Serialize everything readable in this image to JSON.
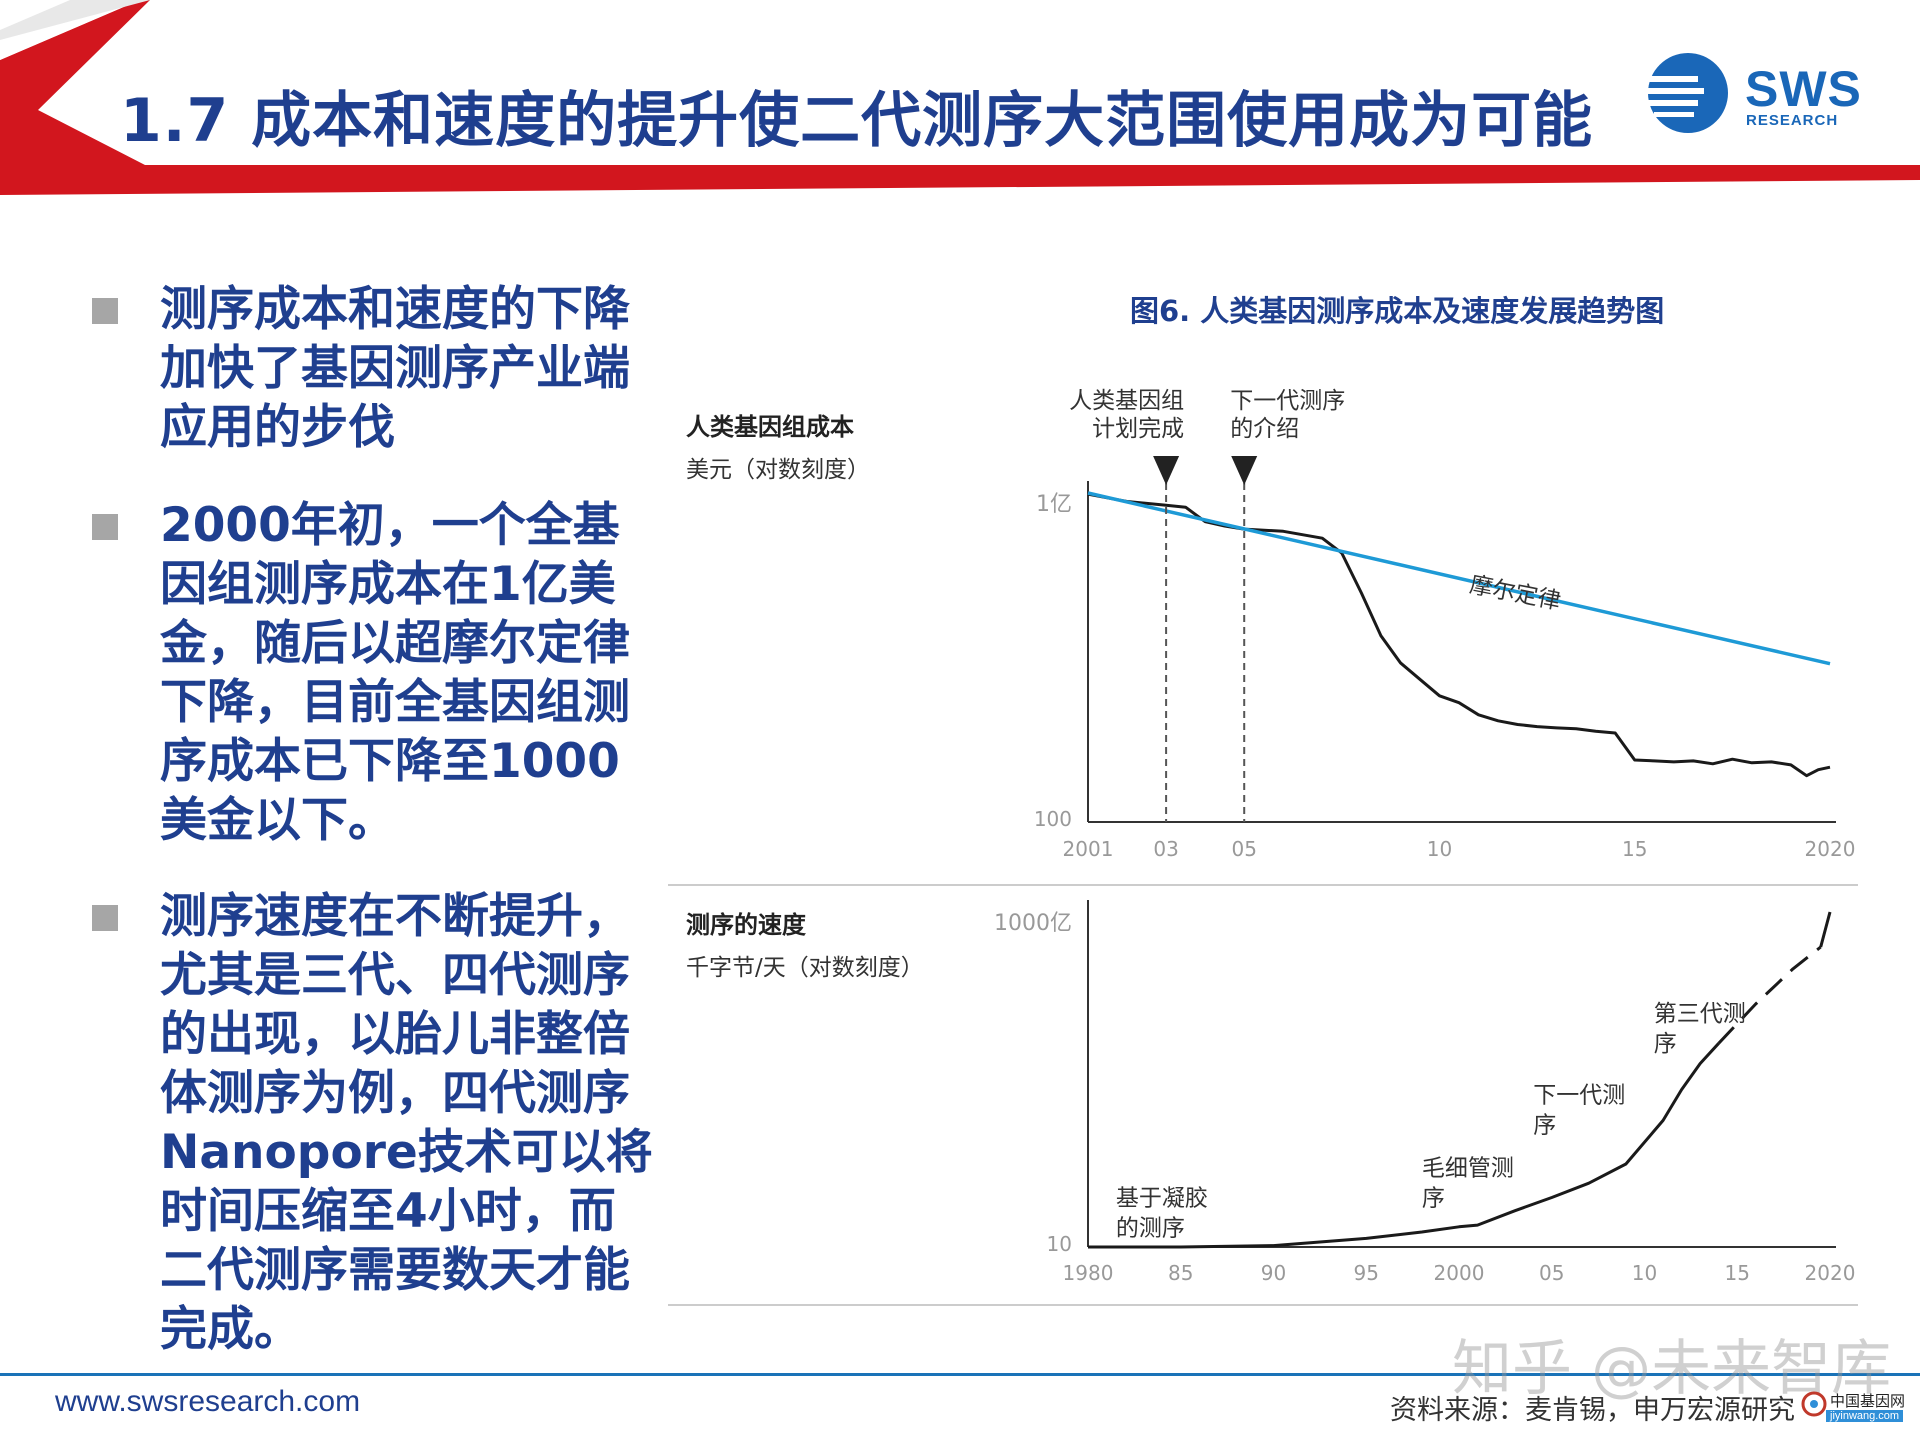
{
  "header": {
    "title": "1.7 成本和速度的提升使二代测序大范围使用成为可能",
    "logo": {
      "name": "SWS",
      "sub": "RESEARCH"
    },
    "colors": {
      "accent_red": "#d2161e",
      "title_blue": "#1f3f8f",
      "logo_blue": "#1a67b8"
    }
  },
  "bullets": [
    "测序成本和速度的下降加快了基因测序产业端应用的步伐",
    "2000年初，一个全基因组测序成本在1亿美金，随后以超摩尔定律下降，目前全基因组测序成本已下降至1000美金以下。",
    "测序速度在不断提升，尤其是三代、四代测序的出现，以胎儿非整倍体测序为例，四代测序Nanopore技术可以将时间压缩至4小时，而二代测序需要数天才能完成。"
  ],
  "figure_title": "图6. 人类基因测序成本及速度发展趋势图",
  "chart_data": [
    {
      "type": "line",
      "title": "人类基因组成本",
      "ylabel": "美元（对数刻度）",
      "y_scale": "log",
      "ylim": [
        100,
        100000000
      ],
      "y_ticks": [
        "1亿",
        "100"
      ],
      "xlim": [
        2001,
        2020
      ],
      "x_ticks": [
        {
          "x": 2001,
          "label": "2001"
        },
        {
          "x": 2003,
          "label": "03"
        },
        {
          "x": 2005,
          "label": "05"
        },
        {
          "x": 2010,
          "label": "10"
        },
        {
          "x": 2015,
          "label": "15"
        },
        {
          "x": 2020,
          "label": "2020"
        }
      ],
      "series": [
        {
          "name": "",
          "color": "#1a1a1a",
          "points": [
            [
              2001,
              95000000
            ],
            [
              2002,
              70000000
            ],
            [
              2003,
              60000000
            ],
            [
              2003.5,
              55000000
            ],
            [
              2004,
              30000000
            ],
            [
              2004.5,
              25000000
            ],
            [
              2005,
              22000000
            ],
            [
              2006,
              20000000
            ],
            [
              2007,
              15000000
            ],
            [
              2007.5,
              8000000
            ],
            [
              2008,
              1500000
            ],
            [
              2008.5,
              250000
            ],
            [
              2009,
              80000.0
            ],
            [
              2009.5,
              40000
            ],
            [
              2010,
              20000
            ],
            [
              2010.5,
              15000
            ],
            [
              2011,
              9000
            ],
            [
              2011.5,
              7000
            ],
            [
              2012,
              6000
            ],
            [
              2012.5,
              5500
            ],
            [
              2013,
              5200
            ],
            [
              2013.5,
              5000
            ],
            [
              2014,
              4500
            ],
            [
              2014.5,
              4200
            ],
            [
              2015,
              1350
            ],
            [
              2015.5,
              1300
            ],
            [
              2016,
              1250
            ],
            [
              2016.5,
              1300
            ],
            [
              2017,
              1150
            ],
            [
              2017.5,
              1400
            ],
            [
              2018,
              1200
            ],
            [
              2018.5,
              1250
            ],
            [
              2019,
              1100
            ],
            [
              2019.4,
              700
            ],
            [
              2019.7,
              900
            ],
            [
              2020,
              1000
            ]
          ]
        },
        {
          "name": "摩尔定律",
          "color": "#1e9ad6",
          "points": [
            [
              2001,
              100000000
            ],
            [
              2020,
              77000
            ]
          ]
        }
      ],
      "annotations": [
        {
          "x": 2003,
          "label": "人类基因组计划完成"
        },
        {
          "x": 2005,
          "label": "下一代测序的介绍"
        }
      ]
    },
    {
      "type": "line",
      "title": "测序的速度",
      "ylabel": "千字节/天（对数刻度）",
      "y_scale": "log",
      "ylim": [
        10,
        100000000000
      ],
      "y_ticks": [
        "1000亿",
        "10"
      ],
      "xlim": [
        1980,
        2020
      ],
      "x_ticks": [
        {
          "x": 1980,
          "label": "1980"
        },
        {
          "x": 1985,
          "label": "85"
        },
        {
          "x": 1990,
          "label": "90"
        },
        {
          "x": 1995,
          "label": "95"
        },
        {
          "x": 2000,
          "label": "2000"
        },
        {
          "x": 2005,
          "label": "05"
        },
        {
          "x": 2010,
          "label": "10"
        },
        {
          "x": 2015,
          "label": "15"
        },
        {
          "x": 2020,
          "label": "2020"
        }
      ],
      "series": [
        {
          "name": "",
          "color": "#1a1a1a",
          "points": [
            [
              1980,
              10
            ],
            [
              1985,
              10
            ],
            [
              1990,
              11
            ],
            [
              1995,
              18
            ],
            [
              1998,
              28
            ],
            [
              2000,
              40
            ],
            [
              2001,
              45
            ],
            [
              2003,
              120
            ],
            [
              2005,
              300
            ],
            [
              2007,
              800
            ],
            [
              2009,
              3000
            ],
            [
              2011,
              60000
            ],
            [
              2012,
              500000
            ],
            [
              2013,
              3000000
            ],
            [
              2014,
              12000000
            ]
          ]
        },
        {
          "name": "",
          "color": "#1a1a1a",
          "style": "dashed",
          "points": [
            [
              2014,
              12000000
            ],
            [
              2016,
              180000000
            ],
            [
              2018,
              2000000000
            ],
            [
              2019.5,
              9000000000
            ]
          ]
        },
        {
          "name": "",
          "color": "#1a1a1a",
          "points": [
            [
              2019.5,
              9000000000
            ],
            [
              2020,
              100000000000
            ]
          ]
        }
      ],
      "annotations": [
        {
          "x": 1981.5,
          "y": 25,
          "label": "基于凝胶的测序"
        },
        {
          "x": 1998,
          "y": 200,
          "label": "毛细管测序"
        },
        {
          "x": 2004,
          "y": 30000,
          "label": "下一代测序"
        },
        {
          "x": 2010.5,
          "y": 8000000,
          "label": "第三代测序"
        }
      ]
    }
  ],
  "footer": {
    "url": "www.swsresearch.com",
    "source": "资料来源：麦肯锡，申万宏源研究",
    "watermark": "知乎 @未来智库",
    "corner_logo": "中国基因网",
    "corner_logo_sub": "jiyinwang.com"
  }
}
